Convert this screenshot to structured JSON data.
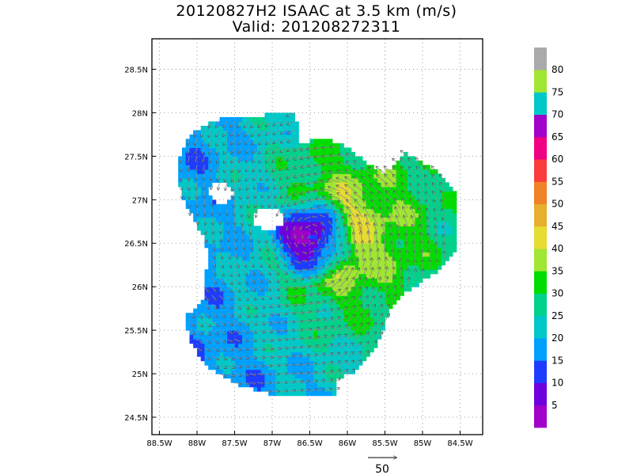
{
  "chart_data": {
    "type": "heatmap",
    "title": "20120827H2 ISAAC at 3.5 km (m/s)",
    "subtitle": "Valid: 201208272311",
    "xlabel": "",
    "ylabel": "",
    "x_ticks": [
      "88.5W",
      "88W",
      "87.5W",
      "87W",
      "86.5W",
      "86W",
      "85.5W",
      "85W",
      "84.5W"
    ],
    "y_ticks": [
      "28.5N",
      "28N",
      "27.5N",
      "27N",
      "26.5N",
      "26N",
      "25.5N",
      "25N",
      "24.5N"
    ],
    "xlim": [
      -88.6,
      -84.2
    ],
    "ylim": [
      24.3,
      28.85
    ],
    "grid": true,
    "storm_center": {
      "lon": -86.48,
      "lat": 26.58
    },
    "vector_reference": {
      "label": "50",
      "value": 50,
      "units": "m/s"
    },
    "colorbar": {
      "labels": [
        "5",
        "10",
        "15",
        "20",
        "25",
        "30",
        "35",
        "40",
        "45",
        "50",
        "55",
        "60",
        "65",
        "70",
        "75",
        "80"
      ],
      "bounds": [
        0,
        5,
        10,
        15,
        20,
        25,
        30,
        35,
        40,
        45,
        50,
        55,
        60,
        65,
        70,
        75,
        80,
        85
      ],
      "colors": [
        "#a000c8",
        "#6e00dc",
        "#1e3cff",
        "#00a0ff",
        "#00c8c8",
        "#00d28c",
        "#00dc00",
        "#a0e632",
        "#e6dc32",
        "#e6af2d",
        "#f08228",
        "#fa3c3c",
        "#f00082",
        "#a000c8",
        "#00c8c8",
        "#a0e632",
        "#aaaaaa"
      ]
    }
  }
}
